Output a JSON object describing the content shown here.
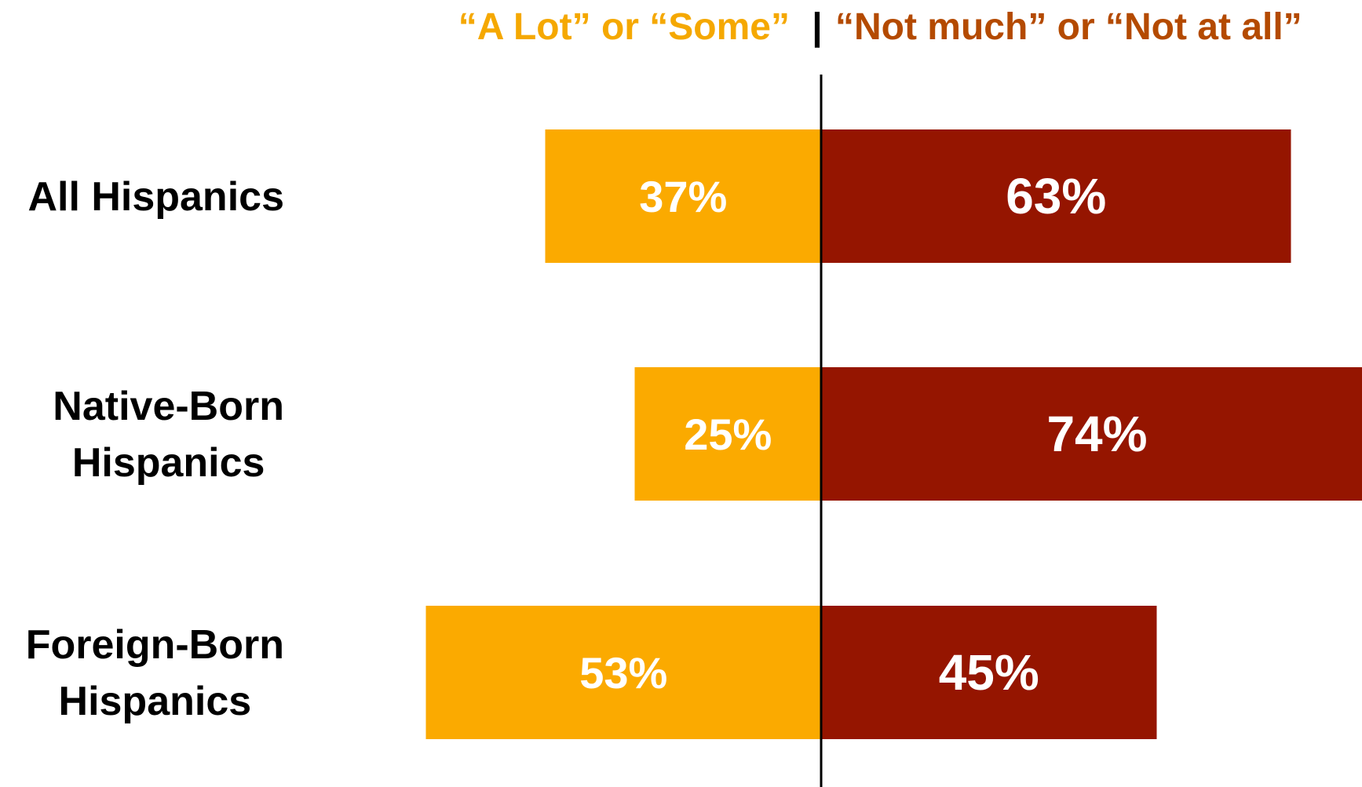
{
  "chart_data": {
    "type": "bar",
    "orientation": "horizontal-diverging",
    "categories": [
      "All Hispanics",
      "Native-Born Hispanics",
      "Foreign-Born Hispanics"
    ],
    "category_lines": [
      [
        "All Hispanics"
      ],
      [
        "Native-Born",
        "Hispanics"
      ],
      [
        "Foreign-Born",
        "Hispanics"
      ]
    ],
    "series": [
      {
        "name": "“A Lot” or “Some”",
        "direction": "left",
        "color": "#FBAA00",
        "values": [
          37,
          25,
          53
        ],
        "labels": [
          "37%",
          "25%",
          "53%"
        ]
      },
      {
        "name": "“Not much” or “Not at all”",
        "direction": "right",
        "color": "#951500",
        "values": [
          63,
          74,
          45
        ],
        "labels": [
          "63%",
          "74%",
          "45%"
        ]
      }
    ],
    "legend": {
      "position": "top",
      "separator": "|",
      "colors": {
        "left": "#F5A800",
        "separator": "#000000",
        "right": "#B44A00"
      }
    },
    "grid": false,
    "axis_line": "center vertical"
  }
}
